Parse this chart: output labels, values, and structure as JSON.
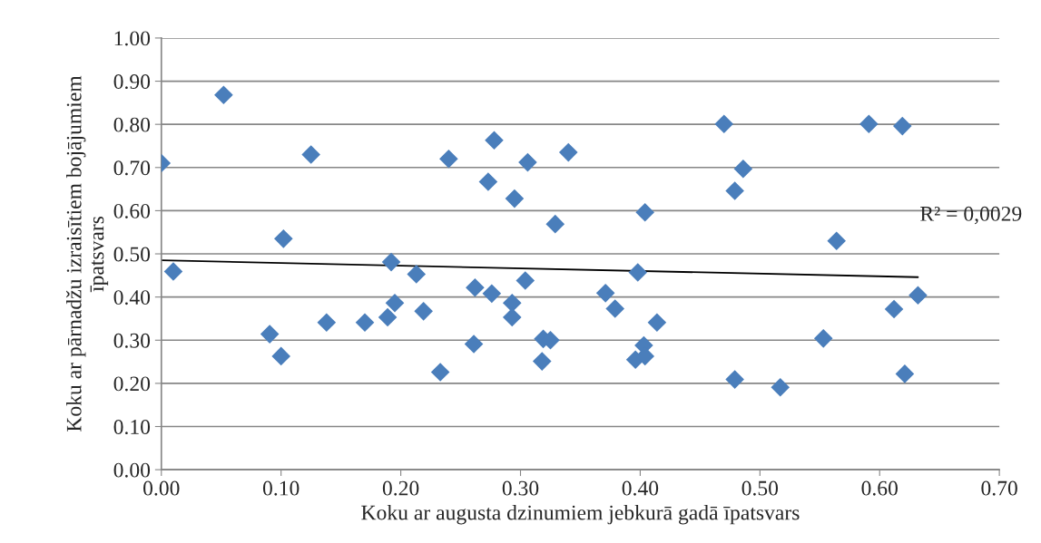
{
  "chart_data": {
    "type": "scatter",
    "xlabel": "Koku ar augusta dzinumiem jebkurā gadā īpatsvars",
    "ylabel": "Koku ar pārnadžu izraisītiem bojājumiem\nīpatsvars",
    "x": [
      0.0,
      0.01,
      0.052,
      0.0905,
      0.1,
      0.102,
      0.125,
      0.138,
      0.17,
      0.189,
      0.192,
      0.195,
      0.213,
      0.219,
      0.233,
      0.24,
      0.262,
      0.261,
      0.273,
      0.276,
      0.278,
      0.295,
      0.293,
      0.293,
      0.304,
      0.306,
      0.318,
      0.319,
      0.325,
      0.329,
      0.34,
      0.371,
      0.379,
      0.398,
      0.396,
      0.403,
      0.404,
      0.404,
      0.414,
      0.47,
      0.479,
      0.479,
      0.486,
      0.517,
      0.553,
      0.564,
      0.591,
      0.612,
      0.619,
      0.621,
      0.632
    ],
    "series": [
      {
        "color": "#4a7ebb",
        "marker": "diamond",
        "values": [
          0.71,
          0.459,
          0.868,
          0.314,
          0.263,
          0.535,
          0.73,
          0.341,
          0.341,
          0.353,
          0.481,
          0.386,
          0.453,
          0.367,
          0.226,
          0.72,
          0.422,
          0.291,
          0.667,
          0.408,
          0.763,
          0.628,
          0.386,
          0.353,
          0.438,
          0.712,
          0.251,
          0.303,
          0.3,
          0.569,
          0.735,
          0.409,
          0.373,
          0.457,
          0.255,
          0.288,
          0.263,
          0.596,
          0.341,
          0.801,
          0.646,
          0.209,
          0.697,
          0.191,
          0.304,
          0.53,
          0.801,
          0.372,
          0.796,
          0.222,
          0.404
        ]
      },
      {
        "type": "line",
        "color": "#000000",
        "marker": "none",
        "x": [
          0.0,
          0.632
        ],
        "values": [
          0.485,
          0.446
        ]
      }
    ],
    "annotations": [
      "R² = 0,0029"
    ],
    "xlim": [
      0,
      0.7
    ],
    "ylim": [
      0,
      1
    ],
    "xticks": [
      {
        "value": 0,
        "label": "0.00"
      },
      {
        "value": 0.1,
        "label": "0.10"
      },
      {
        "value": 0.2,
        "label": "0.20"
      },
      {
        "value": 0.3,
        "label": "0.30"
      },
      {
        "value": 0.4,
        "label": "0.40"
      },
      {
        "value": 0.5,
        "label": "0.50"
      },
      {
        "value": 0.6,
        "label": "0.60"
      },
      {
        "value": 0.7,
        "label": "0.70"
      }
    ],
    "yticks": [
      {
        "value": 0,
        "label": "0.00"
      },
      {
        "value": 0.1,
        "label": "0.10"
      },
      {
        "value": 0.2,
        "label": "0.20"
      },
      {
        "value": 0.3,
        "label": "0.30"
      },
      {
        "value": 0.4,
        "label": "0.40"
      },
      {
        "value": 0.5,
        "label": "0.50"
      },
      {
        "value": 0.6,
        "label": "0.60"
      },
      {
        "value": 0.7,
        "label": "0.70"
      },
      {
        "value": 0.8,
        "label": "0.80"
      },
      {
        "value": 0.9,
        "label": "0.90"
      },
      {
        "value": 1,
        "label": "1.00"
      }
    ],
    "grid": "y",
    "legend": false
  }
}
